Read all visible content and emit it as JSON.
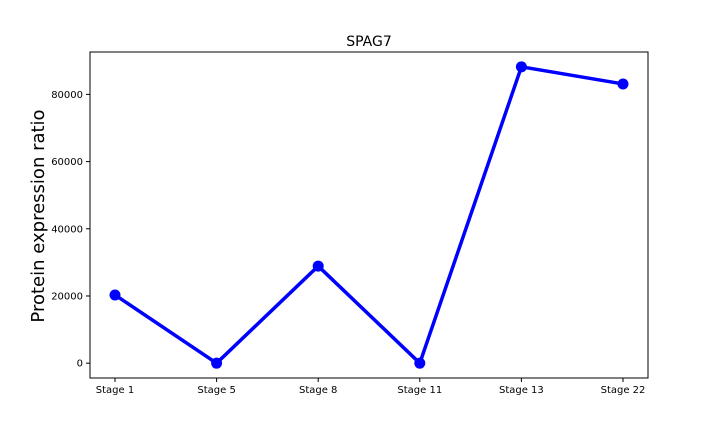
{
  "chart_data": {
    "type": "line",
    "title": "SPAG7",
    "xlabel": "",
    "ylabel": "Protein expression ratio",
    "categories": [
      "Stage 1",
      "Stage 5",
      "Stage 8",
      "Stage 11",
      "Stage 13",
      "Stage 22"
    ],
    "series": [
      {
        "values": [
          20300,
          0,
          28900,
          0,
          88200,
          83100
        ],
        "color": "#0000ff"
      }
    ],
    "yticks": [
      0,
      20000,
      40000,
      60000,
      80000
    ],
    "ylim": [
      -4410,
      92610
    ],
    "grid": false,
    "legend": "none"
  }
}
